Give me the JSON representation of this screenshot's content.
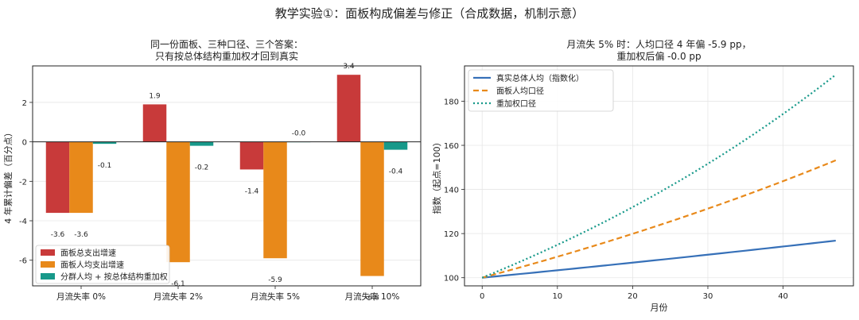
{
  "suptitle": "教学实验①：面板构成偏差与修正（合成数据，机制示意）",
  "chart_data": [
    {
      "type": "bar",
      "title_lines": [
        "同一份面板、三种口径、三个答案：",
        "只有按总体结构重加权才回到真实"
      ],
      "ylabel": "4 年累计偏差（百分点）",
      "categories": [
        "月流失率 0%",
        "月流失率 2%",
        "月流失率 5%",
        "月流失率 10%"
      ],
      "ylim": [
        -7.3,
        3.85
      ],
      "yticks": [
        -6,
        -4,
        -2,
        0,
        2
      ],
      "grid": true,
      "legend_position": "lower-left",
      "series": [
        {
          "name": "面板总支出增速",
          "color": "#c83a3a",
          "values": [
            -3.6,
            1.9,
            -1.4,
            3.4
          ],
          "labels": [
            "-3.6",
            "1.9",
            "-1.4",
            "3.4"
          ]
        },
        {
          "name": "面板人均支出增速",
          "color": "#e8891a",
          "values": [
            -3.6,
            -6.1,
            -5.9,
            -6.8
          ],
          "labels": [
            "-3.6",
            "-6.1",
            "-5.9",
            "-6.8"
          ]
        },
        {
          "name": "分群人均 + 按总体结构重加权",
          "color": "#17998a",
          "values": [
            -0.1,
            -0.2,
            -0.0,
            -0.4
          ],
          "labels": [
            "-0.1",
            "-0.2",
            "-0.0",
            "-0.4"
          ]
        }
      ]
    },
    {
      "type": "line",
      "title_lines": [
        "月流失 5% 时：人均口径 4 年偏 -5.9 pp，",
        "重加权后偏 -0.0 pp"
      ],
      "xlabel": "月份",
      "ylabel": "指数（起点=100）",
      "xlim": [
        -2.35,
        49.35
      ],
      "ylim": [
        96.3,
        196.0
      ],
      "xticks": [
        0,
        10,
        20,
        30,
        40
      ],
      "yticks": [
        100,
        120,
        140,
        160,
        180
      ],
      "grid": true,
      "legend_position": "upper-left",
      "x_range": [
        0,
        47
      ],
      "series": [
        {
          "name": "真实总体人均（指数化）",
          "color": "#3670b8",
          "style": "solid",
          "start": 100.0,
          "end": 116.8
        },
        {
          "name": "面板人均口径",
          "color": "#e8891a",
          "style": "dashed",
          "start": 100.0,
          "end": 153.2
        },
        {
          "name": "重加权口径",
          "color": "#17998a",
          "style": "dotted",
          "start": 100.0,
          "end": 192.0
        }
      ]
    }
  ]
}
